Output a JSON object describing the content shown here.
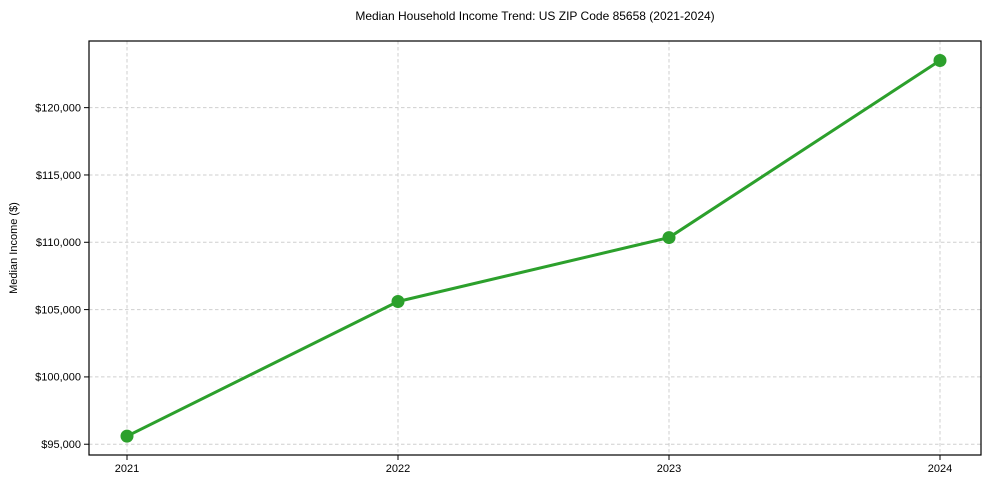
{
  "figure": {
    "background_color": "#ffffff",
    "text_color": "#000000",
    "grid_color": "#cfcfcf",
    "spine_color": "#000000"
  },
  "chart_data": {
    "type": "line",
    "title": "Median Household Income Trend: US ZIP Code 85658 (2021-2024)",
    "xlabel": "",
    "ylabel": "Median Income ($)",
    "x": [
      2021,
      2022,
      2023,
      2024
    ],
    "xtick_labels": [
      "2021",
      "2022",
      "2023",
      "2024"
    ],
    "series": [
      {
        "name": "Median Household Income",
        "values": [
          95600,
          105600,
          110350,
          123500
        ],
        "color": "#2ca02c",
        "marker": "circle",
        "line_width": 3,
        "marker_radius": 6.5
      }
    ],
    "yticks": [
      95000,
      100000,
      105000,
      110000,
      115000,
      120000
    ],
    "ytick_labels": [
      "$95,000",
      "$100,000",
      "$105,000",
      "$110,000",
      "$115,000",
      "$120,000"
    ],
    "ylim": [
      94200,
      124950
    ],
    "grid": true,
    "grid_style": "dashed",
    "legend_position": "none"
  }
}
